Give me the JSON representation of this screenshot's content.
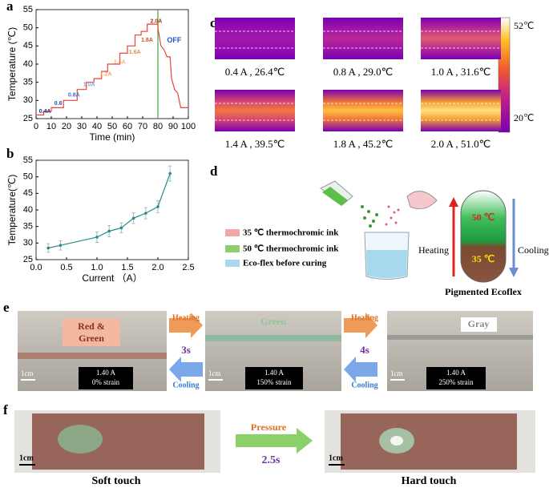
{
  "panel_labels": [
    "a",
    "b",
    "c",
    "d",
    "e",
    "f"
  ],
  "chart_data": [
    {
      "type": "step-line",
      "x": [
        0,
        5,
        5,
        10,
        10,
        18,
        18,
        27,
        27,
        33,
        33,
        38,
        38,
        43,
        43,
        47,
        47,
        55,
        55,
        60,
        60,
        65,
        65,
        69,
        69,
        73,
        73,
        80,
        80,
        82,
        84,
        86,
        88,
        89,
        91,
        93,
        95,
        100
      ],
      "y": [
        26,
        26,
        27,
        27,
        28,
        28,
        30,
        30,
        33,
        33,
        35,
        35,
        36,
        36,
        38,
        38,
        40,
        40,
        43,
        43,
        45,
        45,
        48,
        48,
        49,
        49,
        51,
        51,
        50,
        45,
        44,
        42,
        42,
        36,
        33,
        32,
        28,
        28
      ],
      "color": "#e8433c",
      "xlabel": "Time (min)",
      "ylabel": "Temperature (℃)",
      "xlim": [
        0,
        100
      ],
      "ylim": [
        25,
        55
      ],
      "xticks": [
        0,
        10,
        20,
        30,
        40,
        50,
        60,
        70,
        80,
        90,
        100
      ],
      "yticks": [
        25,
        30,
        35,
        40,
        45,
        50,
        55
      ],
      "vline": 80,
      "vline_color": "#3aa83a",
      "annotations": [
        {
          "text": "0.4A",
          "color": "#1f3b8c"
        },
        {
          "text": "0.6",
          "color": "#2453a6"
        },
        {
          "text": "0.8A",
          "color": "#3f6fbf"
        },
        {
          "text": "1.0A",
          "color": "#7fa9dc"
        },
        {
          "text": "1.2A",
          "color": "#f0a860"
        },
        {
          "text": "1.4A",
          "color": "#f2b070"
        },
        {
          "text": "1.6A",
          "color": "#e98c3a"
        },
        {
          "text": "1.8A",
          "color": "#c8571c"
        },
        {
          "text": "2.0A",
          "color": "#a3341a"
        },
        {
          "text": "OFF",
          "color": "#2a4fd0"
        }
      ]
    },
    {
      "type": "errorbar-line",
      "x": [
        0.2,
        0.4,
        1.0,
        1.2,
        1.4,
        1.6,
        1.8,
        2.0,
        2.2
      ],
      "y": [
        28.5,
        29.3,
        31.8,
        33.6,
        34.6,
        37.5,
        39,
        41,
        51
      ],
      "errors": [
        1.3,
        1.4,
        1.6,
        1.7,
        1.5,
        1.6,
        1.7,
        1.8,
        2.3
      ],
      "color": "#2a8a8a",
      "xlabel": "Current （A）",
      "ylabel": "Temperature(℃)",
      "xlim": [
        0,
        2.5
      ],
      "ylim": [
        25,
        55
      ],
      "xticks": [
        {
          "value": 0,
          "label": "0.0"
        },
        {
          "value": 0.5,
          "label": "0.5"
        },
        {
          "value": 1,
          "label": "1.0"
        },
        {
          "value": 1.5,
          "label": "1.5"
        },
        {
          "value": 2,
          "label": "2.0"
        },
        {
          "value": 2.5,
          "label": "2.5"
        }
      ],
      "yticks": [
        25,
        30,
        35,
        40,
        45,
        50,
        55
      ]
    }
  ],
  "panel_c": {
    "labels": [
      "0.4 A , 26.4℃",
      "0.8 A , 29.0℃",
      "1.0 A , 31.6℃",
      "1.4 A , 39.5℃",
      "1.8 A , 45.2℃",
      "2.0 A , 51.0℃"
    ],
    "colorbar_max": "52℃",
    "colorbar_min": "20℃"
  },
  "panel_d": {
    "legend": [
      "35 ℃ thermochromic ink",
      "50 ℃ thermochromic ink",
      "Eco-flex before curing"
    ],
    "heating": "Heating",
    "cooling": "Cooling",
    "upper": "50 ℃",
    "lower": "35 ℃",
    "caption": "Pigmented Ecoflex"
  },
  "panel_e": {
    "stage1": [
      "Red &",
      "Green"
    ],
    "stage2": "Green",
    "stage3": "Gray",
    "boxes": [
      [
        "1.40 A",
        "0% strain"
      ],
      [
        "1.40 A",
        "150% strain"
      ],
      [
        "1.40 A",
        "250% strain"
      ]
    ],
    "scale": [
      "1cm",
      "1cm",
      "1cm"
    ],
    "transitions": [
      {
        "heating": "Heating",
        "time": "3s",
        "cooling": "Cooling"
      },
      {
        "heating": "Heating",
        "time": "4s",
        "cooling": "Cooling"
      }
    ]
  },
  "panel_f": {
    "action": "Pressure",
    "time": "2.5s",
    "scale": [
      "1cm",
      "1cm"
    ],
    "captions": [
      "Soft touch",
      "Hard touch"
    ]
  }
}
